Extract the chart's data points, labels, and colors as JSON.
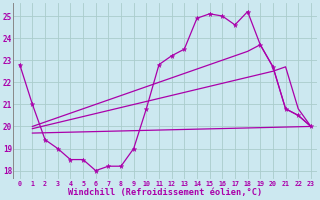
{
  "xlabel": "Windchill (Refroidissement éolien,°C)",
  "background_color": "#cce8f0",
  "grid_color": "#aacccc",
  "line_color": "#aa00aa",
  "xlim": [
    -0.5,
    23.5
  ],
  "ylim": [
    17.6,
    25.6
  ],
  "yticks": [
    18,
    19,
    20,
    21,
    22,
    23,
    24,
    25
  ],
  "xticks": [
    0,
    1,
    2,
    3,
    4,
    5,
    6,
    7,
    8,
    9,
    10,
    11,
    12,
    13,
    14,
    15,
    16,
    17,
    18,
    19,
    20,
    21,
    22,
    23
  ],
  "series1_x": [
    0,
    1,
    2,
    3,
    4,
    5,
    6,
    7,
    8,
    9,
    10,
    11,
    12,
    13,
    14,
    15,
    16,
    17,
    18,
    19,
    20,
    21,
    22,
    23
  ],
  "series1_y": [
    22.8,
    21.0,
    19.4,
    19.0,
    18.5,
    18.5,
    18.0,
    18.2,
    18.2,
    19.0,
    20.8,
    22.8,
    23.2,
    23.5,
    24.9,
    25.1,
    25.0,
    24.6,
    25.2,
    23.7,
    22.7,
    20.8,
    20.5,
    20.0
  ],
  "series2_x": [
    1,
    23
  ],
  "series2_y": [
    19.7,
    20.0
  ],
  "series3_x": [
    1,
    20,
    21,
    22,
    23
  ],
  "series3_y": [
    19.9,
    22.5,
    22.7,
    20.8,
    20.0
  ],
  "series4_x": [
    1,
    18,
    19,
    20,
    21,
    22,
    23
  ],
  "series4_y": [
    20.0,
    23.4,
    23.7,
    22.7,
    20.8,
    20.5,
    20.0
  ]
}
